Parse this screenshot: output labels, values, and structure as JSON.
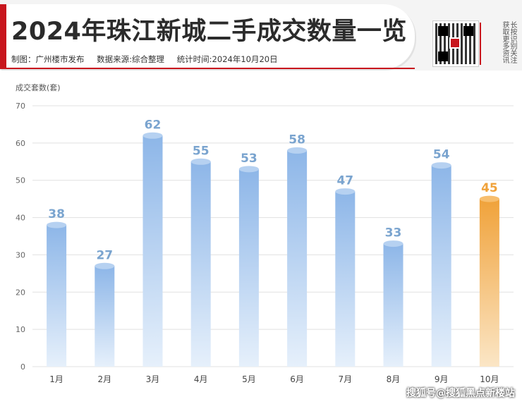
{
  "header": {
    "title": "2024年珠江新城二手成交数量一览",
    "made_by": "制图：广州楼市发布",
    "source": "数据来源:综合整理",
    "stat_time": "统计时间:2024年10月20日",
    "qr_caption": "长按识别关注获取更多资讯"
  },
  "watermark": "搜狐号@搜狐黑点新楼站",
  "colors": {
    "accent": "#c8161d",
    "bar_blue": "#8fb8e8",
    "bar_highlight": "#f0a23a",
    "label_blue": "#7aa4cf"
  },
  "chart_data": {
    "type": "bar",
    "title": "2024年珠江新城二手成交数量一览",
    "ylabel": "成交套数(套)",
    "xlabel": "",
    "ylim": [
      0,
      70
    ],
    "yticks": [
      0,
      10,
      20,
      30,
      40,
      50,
      60,
      70
    ],
    "grid": true,
    "categories": [
      "1月",
      "2月",
      "3月",
      "4月",
      "5月",
      "6月",
      "7月",
      "8月",
      "9月",
      "10月"
    ],
    "values": [
      38,
      27,
      62,
      55,
      53,
      58,
      47,
      33,
      54,
      45
    ],
    "highlight_index": 9
  }
}
